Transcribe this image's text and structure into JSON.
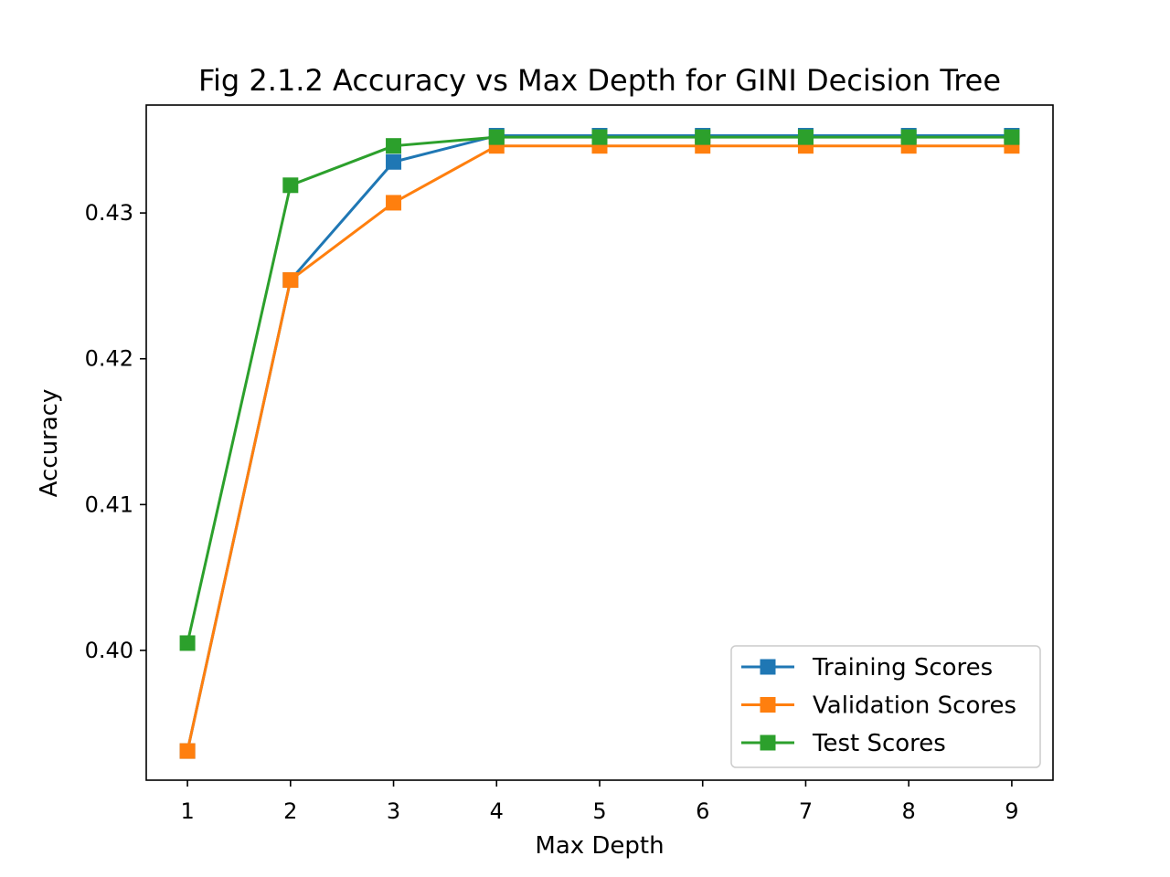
{
  "chart_data": {
    "type": "line",
    "title": "Fig 2.1.2 Accuracy vs Max Depth for GINI Decision Tree",
    "xlabel": "Max Depth",
    "ylabel": "Accuracy",
    "x": [
      1,
      2,
      3,
      4,
      5,
      6,
      7,
      8,
      9
    ],
    "xticks": [
      "1",
      "2",
      "3",
      "4",
      "5",
      "6",
      "7",
      "8",
      "9"
    ],
    "yticks": [
      "0.40",
      "0.41",
      "0.42",
      "0.43"
    ],
    "xlim": [
      0.6,
      9.4
    ],
    "ylim": [
      0.3911,
      0.4374
    ],
    "grid": false,
    "legend_position": "lower-right",
    "marker": "square",
    "series": [
      {
        "name": "Training Scores",
        "color": "#1f77b4",
        "values": [
          0.3931,
          0.4254,
          0.4335,
          0.4353,
          0.4353,
          0.4353,
          0.4353,
          0.4353,
          0.4353
        ]
      },
      {
        "name": "Validation Scores",
        "color": "#ff7f0e",
        "values": [
          0.3931,
          0.4254,
          0.4307,
          0.4346,
          0.4346,
          0.4346,
          0.4346,
          0.4346,
          0.4346
        ]
      },
      {
        "name": "Test Scores",
        "color": "#2ca02c",
        "values": [
          0.4005,
          0.4319,
          0.4346,
          0.4352,
          0.4352,
          0.4352,
          0.4352,
          0.4352,
          0.4352
        ]
      }
    ]
  }
}
